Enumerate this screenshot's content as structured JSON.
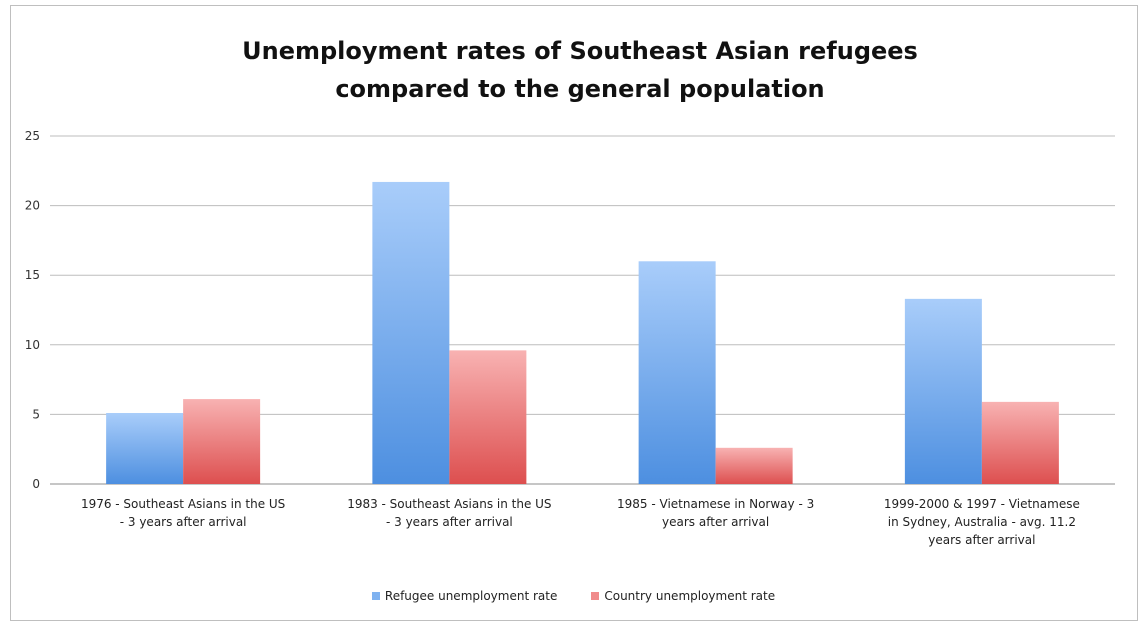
{
  "chart_data": {
    "type": "bar",
    "title": "Unemployment rates of Southeast Asian refugees compared to the general population",
    "title_lines": [
      "Unemployment rates of Southeast Asian refugees",
      "compared to the general population"
    ],
    "categories": [
      "1976 - Southeast Asians in the US - 3 years after arrival",
      "1983 - Southeast Asians in the US - 3 years after arrival",
      "1985 - Vietnamese in Norway - 3 years after arrival",
      "1999-2000 & 1997 - Vietnamese in Sydney, Australia - avg. 11.2 years after arrival"
    ],
    "category_label_lines": [
      [
        "1976 - Southeast Asians in the US",
        "- 3 years after arrival"
      ],
      [
        "1983 - Southeast Asians in the US",
        "- 3 years after arrival"
      ],
      [
        "1985 - Vietnamese in Norway - 3",
        "years after arrival"
      ],
      [
        "1999-2000 & 1997 - Vietnamese",
        "in Sydney, Australia - avg. 11.2",
        "years after arrival"
      ]
    ],
    "series": [
      {
        "name": "Refugee unemployment rate",
        "values": [
          5.1,
          21.7,
          16.0,
          13.3
        ],
        "color": "#7fb2f0"
      },
      {
        "name": "Country unemployment rate",
        "values": [
          6.1,
          9.6,
          2.6,
          5.9
        ],
        "color": "#f08b8b"
      }
    ],
    "xlabel": "",
    "ylabel": "",
    "ylim": [
      0,
      25
    ],
    "yticks": [
      0,
      5,
      10,
      15,
      20,
      25
    ],
    "grid": true,
    "legend_position": "bottom"
  }
}
